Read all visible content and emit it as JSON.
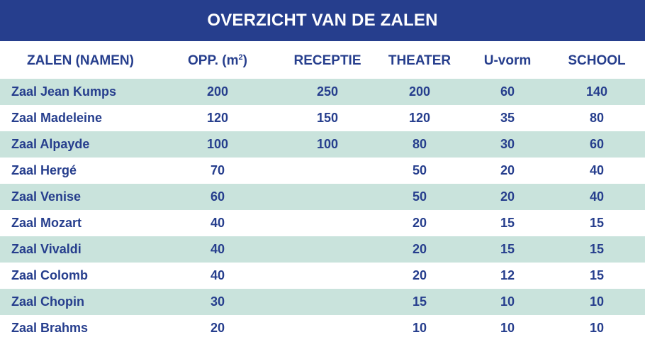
{
  "title": "OVERZICHT VAN DE ZALEN",
  "headers": {
    "name": "ZALEN (NAMEN)",
    "area_prefix": "OPP. (m",
    "area_sup": "2",
    "area_suffix": ")",
    "reception": "RECEPTIE",
    "theater": "THEATER",
    "u_shape": "U-vorm",
    "school": "SCHOOL"
  },
  "colors": {
    "banner": "#263e8d",
    "text": "#263e8d",
    "row_shade": "#c9e3dc"
  },
  "rows": [
    {
      "name": "Zaal Jean Kumps",
      "area": "200",
      "reception": "250",
      "theater": "200",
      "u_shape": "60",
      "school": "140"
    },
    {
      "name": "Zaal Madeleine",
      "area": "120",
      "reception": "150",
      "theater": "120",
      "u_shape": "35",
      "school": "80"
    },
    {
      "name": "Zaal Alpayde",
      "area": "100",
      "reception": "100",
      "theater": "80",
      "u_shape": "30",
      "school": "60"
    },
    {
      "name": "Zaal Hergé",
      "area": "70",
      "reception": "",
      "theater": "50",
      "u_shape": "20",
      "school": "40"
    },
    {
      "name": "Zaal Venise",
      "area": "60",
      "reception": "",
      "theater": "50",
      "u_shape": "20",
      "school": "40"
    },
    {
      "name": "Zaal Mozart",
      "area": "40",
      "reception": "",
      "theater": "20",
      "u_shape": "15",
      "school": "15"
    },
    {
      "name": "Zaal Vivaldi",
      "area": "40",
      "reception": "",
      "theater": "20",
      "u_shape": "15",
      "school": "15"
    },
    {
      "name": "Zaal Colomb",
      "area": "40",
      "reception": "",
      "theater": "20",
      "u_shape": "12",
      "school": "15"
    },
    {
      "name": "Zaal Chopin",
      "area": "30",
      "reception": "",
      "theater": "15",
      "u_shape": "10",
      "school": "10"
    },
    {
      "name": "Zaal Brahms",
      "area": "20",
      "reception": "",
      "theater": "10",
      "u_shape": "10",
      "school": "10"
    }
  ]
}
